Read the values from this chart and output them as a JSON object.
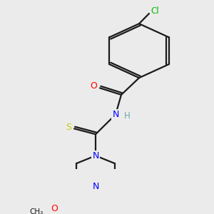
{
  "background_color": "#ebebeb",
  "bond_color": "#1a1a1a",
  "atom_colors": {
    "O": "#ff0000",
    "N": "#0000ff",
    "S": "#cccc00",
    "Cl": "#00bb00",
    "H": "#6aabab",
    "C": "#1a1a1a"
  },
  "figsize": [
    3.0,
    3.0
  ],
  "dpi": 100
}
